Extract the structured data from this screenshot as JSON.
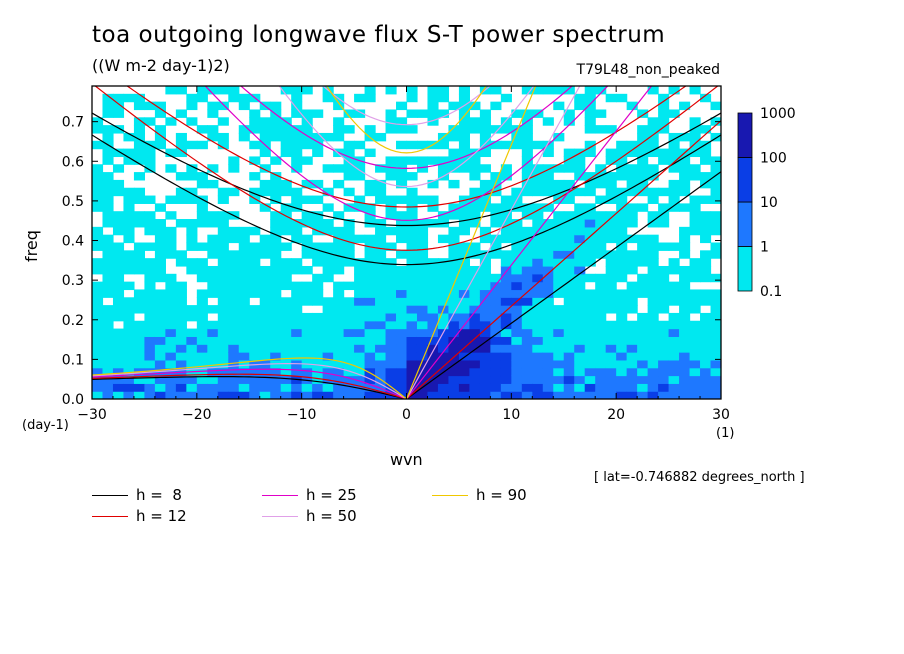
{
  "chart_data": {
    "type": "heatmap",
    "title": "toa outgoing longwave flux S-T power spectrum",
    "units": "((W m-2 day-1)2)",
    "dataset": "T79L48_non_peaked",
    "xlabel": "wvn",
    "ylabel": "freq",
    "x_unit": "(1)",
    "y_unit": "(day-1)",
    "xlim": [
      -30,
      30
    ],
    "ylim": [
      0,
      0.79
    ],
    "x_ticks": [
      -30,
      -20,
      -10,
      0,
      10,
      20,
      30
    ],
    "y_ticks": [
      0.0,
      0.1,
      0.2,
      0.3,
      0.4,
      0.5,
      0.6,
      0.7
    ],
    "annotation": "[ lat=-0.746882 degrees_north ]",
    "colorbar": {
      "levels": [
        "0.1",
        "1",
        "10",
        "100",
        "1000"
      ],
      "colors": [
        "#00e8f0",
        "#1e78ff",
        "#0a3ee6",
        "#1818b0",
        "#4818a8"
      ]
    },
    "dispersion_curves": [
      {
        "label": "h =  8",
        "h": 8,
        "color": "#000000"
      },
      {
        "label": "h = 12",
        "h": 12,
        "color": "#e00000"
      },
      {
        "label": "h = 25",
        "h": 25,
        "color": "#e000c8"
      },
      {
        "label": "h = 50",
        "h": 50,
        "color": "#e0a0e8"
      },
      {
        "label": "h = 90",
        "h": 90,
        "color": "#f0c800"
      }
    ]
  }
}
